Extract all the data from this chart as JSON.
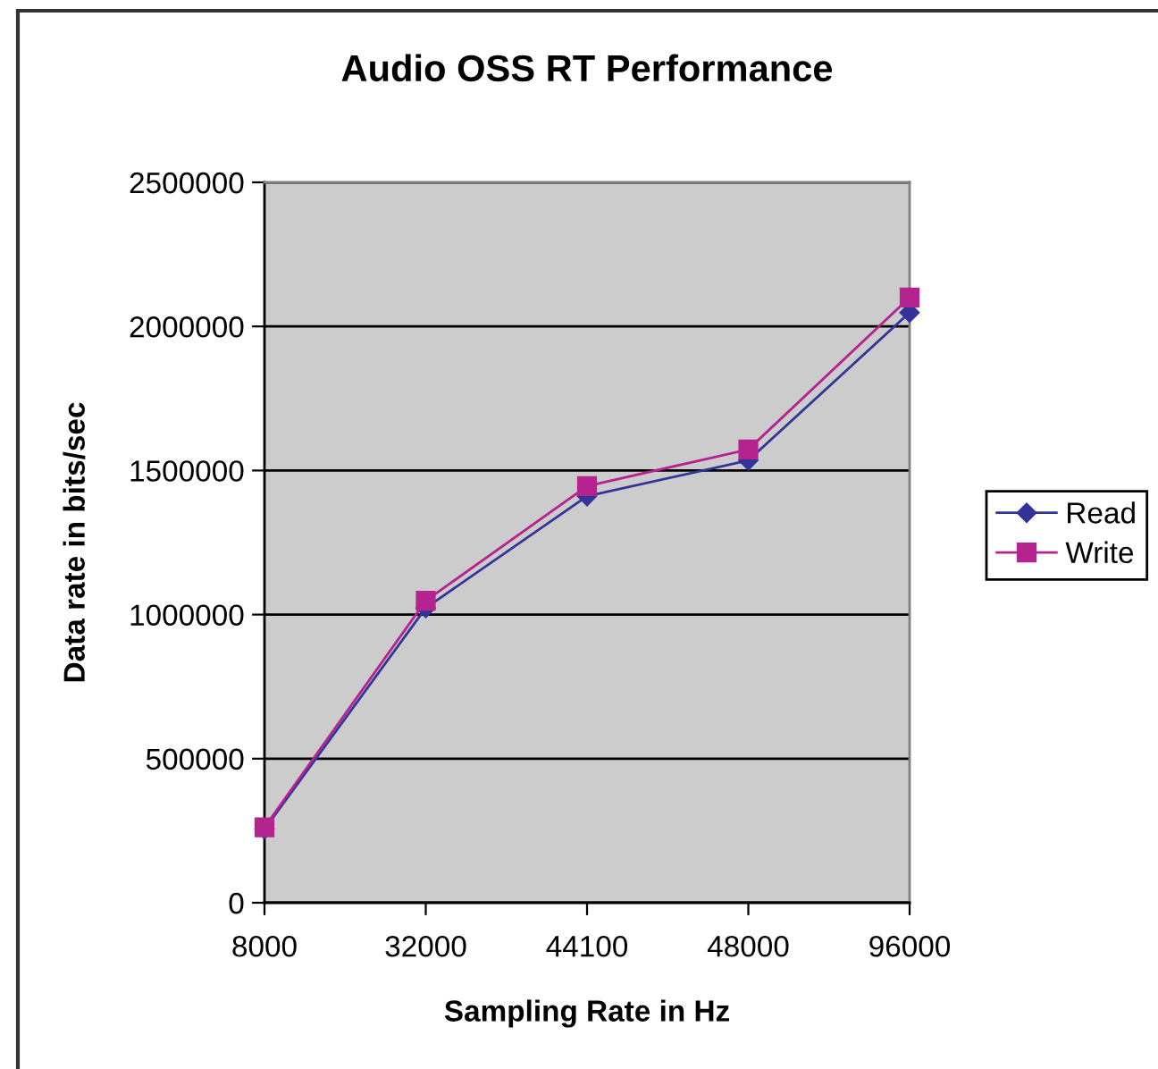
{
  "chart_data": {
    "type": "line",
    "title": "Audio OSS RT Performance",
    "xlabel": "Sampling Rate in Hz",
    "ylabel": "Data rate in bits/sec",
    "categories": [
      "8000",
      "32000",
      "44100",
      "48000",
      "96000"
    ],
    "series": [
      {
        "name": "Read",
        "color": "#333399",
        "marker": "diamond",
        "values": [
          255000,
          1023000,
          1411000,
          1535000,
          2048000
        ]
      },
      {
        "name": "Write",
        "color": "#b4238e",
        "marker": "square",
        "values": [
          262000,
          1048000,
          1446000,
          1573000,
          2100000
        ]
      }
    ],
    "ylim": [
      0,
      2500000
    ],
    "yticks": [
      0,
      500000,
      1000000,
      1500000,
      2000000,
      2500000
    ],
    "grid": "y",
    "legend": "right",
    "line_style": "solid"
  }
}
